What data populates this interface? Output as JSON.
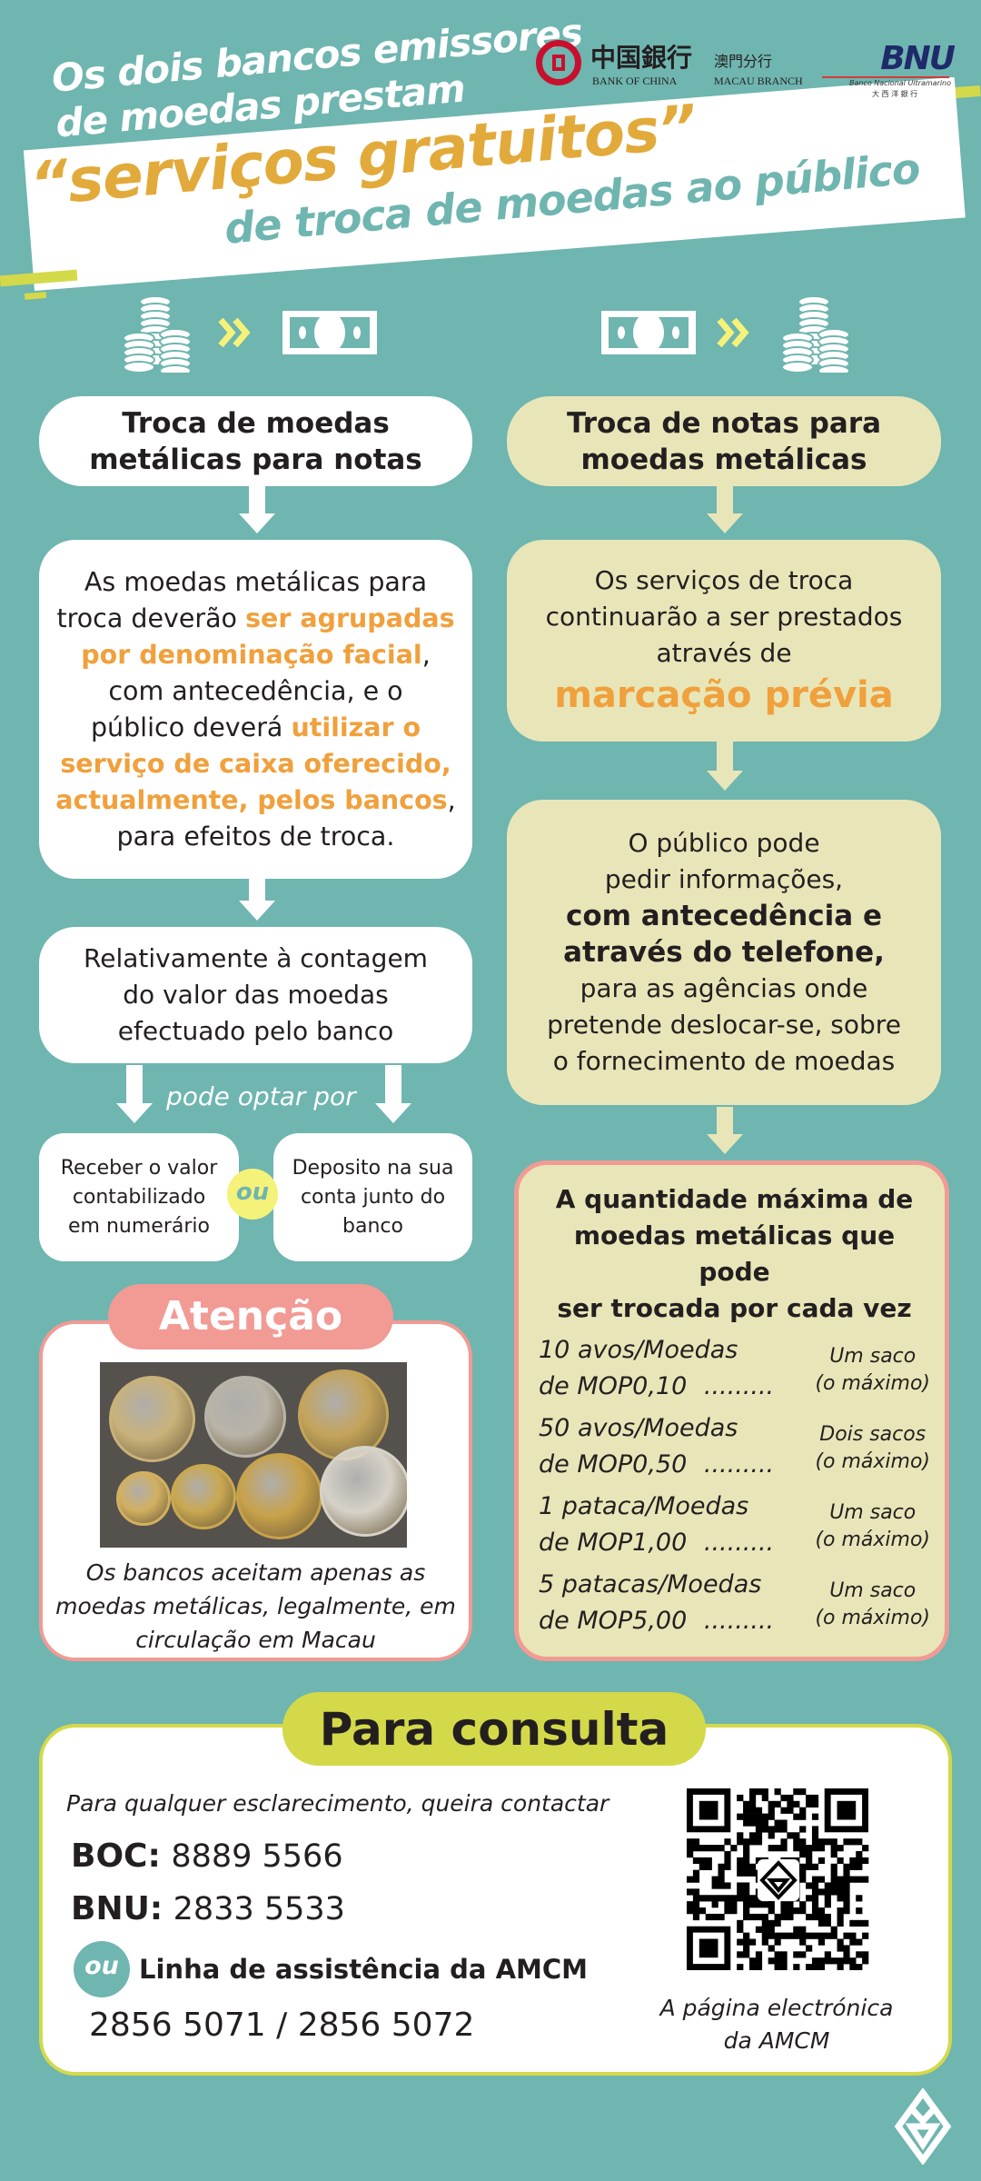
{
  "header": {
    "line1": "Os dois bancos emissores",
    "line2": "de moedas prestam",
    "highlight": "“serviços gratuitos”",
    "line3": "de troca de moedas ao público",
    "logos": {
      "boc_cn": "中国銀行",
      "boc_branch_cn": "澳門分行",
      "boc_en": "BANK OF CHINA",
      "boc_branch_en": "MACAU BRANCH",
      "bnu": "BNU",
      "bnu_full": "Banco Nacional Ultramarino",
      "bnu_cn": "大 西 洋 銀 行"
    }
  },
  "colors": {
    "background": "#6fb5b0",
    "orange": "#f0a03c",
    "cream": "#e8e6b8",
    "pink": "#f29a94",
    "lime": "#d4d94a"
  },
  "left": {
    "title": [
      "Troca de moedas",
      "metálicas para notas"
    ],
    "box1": [
      [
        {
          "t": "As moedas metálicas para"
        }
      ],
      [
        {
          "t": "troca deverão "
        },
        {
          "t": "ser agrupadas",
          "h": 1
        }
      ],
      [
        {
          "t": "por denominação facial",
          "h": 1
        },
        {
          "t": ","
        }
      ],
      [
        {
          "t": "com antecedência, e o"
        }
      ],
      [
        {
          "t": "público deverá "
        },
        {
          "t": "utilizar o",
          "h": 1
        }
      ],
      [
        {
          "t": "serviço de caixa oferecido,",
          "h": 1
        }
      ],
      [
        {
          "t": "actualmente, pelos bancos",
          "h": 1
        },
        {
          "t": ","
        }
      ],
      [
        {
          "t": "para efeitos de troca."
        }
      ]
    ],
    "box2": [
      "Relativamente à contagem",
      "do valor das moedas",
      "efectuado pelo banco"
    ],
    "option_label": "pode optar por",
    "option_a": [
      "Receber o valor",
      "contabilizado",
      "em numerário"
    ],
    "or": "ou",
    "option_b": [
      "Deposito na sua",
      "conta junto do",
      "banco"
    ],
    "attention": {
      "title": "Atenção",
      "caption": [
        "Os bancos aceitam apenas as",
        "moedas metálicas, legalmente, em",
        "circulação em Macau"
      ]
    }
  },
  "right": {
    "title": [
      "Troca de notas para",
      "moedas metálicas"
    ],
    "box1": [
      "Os serviços de troca",
      "continuarão a ser prestados",
      "através de"
    ],
    "box1_highlight": "marcação prévia",
    "box2": {
      "pre": [
        "O público pode",
        "pedir informações,"
      ],
      "bold": [
        "com antecedência e",
        "através do telefone,"
      ],
      "post": [
        "para as agências onde",
        "pretende deslocar-se, sobre",
        "o fornecimento de moedas"
      ]
    },
    "limits": {
      "title": [
        "A quantidade máxima de",
        "moedas metálicas que pode",
        "ser trocada por cada vez"
      ],
      "rows": [
        {
          "coin": [
            "10 avos/Moedas",
            "de MOP0,10"
          ],
          "dots": ".........",
          "limit": [
            "Um saco",
            "(o máximo)"
          ]
        },
        {
          "coin": [
            "50 avos/Moedas",
            "de MOP0,50"
          ],
          "dots": ".........",
          "limit": [
            "Dois sacos",
            "(o máximo)"
          ]
        },
        {
          "coin": [
            "1 pataca/Moedas",
            "de MOP1,00"
          ],
          "dots": ".........",
          "limit": [
            "Um saco",
            "(o máximo)"
          ]
        },
        {
          "coin": [
            "5 patacas/Moedas",
            "de MOP5,00"
          ],
          "dots": ".........",
          "limit": [
            "Um saco",
            "(o máximo)"
          ]
        }
      ]
    }
  },
  "contact": {
    "title": "Para consulta",
    "intro": "Para qualquer esclarecimento, queira contactar",
    "boc_label": "BOC:",
    "boc_phone": "8889 5566",
    "bnu_label": "BNU:",
    "bnu_phone": "2833 5533",
    "or": "ou",
    "amcm_label": "Linha de assistência da AMCM",
    "amcm_phones": "2856 5071 / 2856 5072",
    "qr_caption": [
      "A página electrónica",
      "da AMCM"
    ]
  }
}
